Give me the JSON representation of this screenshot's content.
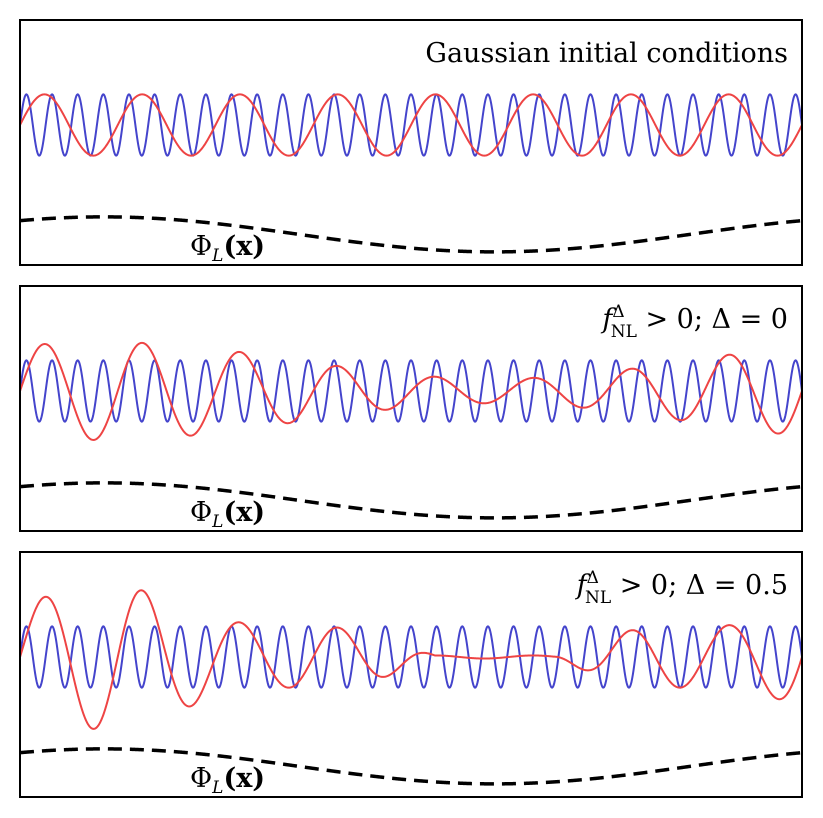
{
  "chart_data": [
    {
      "type": "line",
      "title": "Gaussian initial conditions",
      "title_parts": {
        "base": "Gaussian initial conditions",
        "sup": "",
        "sub": "",
        "rest": ""
      },
      "xlim": [
        0,
        1
      ],
      "ylim": [
        -1.6,
        1.2
      ],
      "grid": false,
      "long_mode_label": "Φ",
      "long_mode_label_sub": "L",
      "long_mode_label_arg": "(x)",
      "long_mode": {
        "name": "",
        "color": "#000000",
        "style": "dashed",
        "amplitude": 0.2,
        "cycles": 1.0,
        "phase": 0.9,
        "offset": -1.25
      },
      "series": [
        {
          "name": "",
          "color": "#4444cc",
          "cycles": 30.5,
          "amplitude": 0.35,
          "phase": 0.0,
          "modulation": 0.0,
          "modulation_power": 0
        },
        {
          "name": "",
          "color": "#ee4444",
          "cycles": 8.0,
          "amplitude": 0.35,
          "phase": 0.0,
          "modulation": 0.0,
          "modulation_power": 0
        }
      ]
    },
    {
      "type": "line",
      "title": "f > 0;  Δ = 0",
      "title_parts": {
        "base": "f",
        "sup": "Δ",
        "sub": "NL",
        "rest": " > 0;  Δ = 0"
      },
      "xlim": [
        0,
        1
      ],
      "ylim": [
        -1.6,
        1.2
      ],
      "grid": false,
      "long_mode_label": "Φ",
      "long_mode_label_sub": "L",
      "long_mode_label_arg": "(x)",
      "long_mode": {
        "name": "",
        "color": "#000000",
        "style": "dashed",
        "amplitude": 0.2,
        "cycles": 1.0,
        "phase": 0.9,
        "offset": -1.25
      },
      "series": [
        {
          "name": "",
          "color": "#4444cc",
          "cycles": 30.5,
          "amplitude": 0.35,
          "phase": 0.0,
          "modulation": 0.0,
          "modulation_power": 0
        },
        {
          "name": "",
          "color": "#ee4444",
          "cycles": 8.0,
          "amplitude": 0.35,
          "phase": 0.0,
          "modulation": 0.6,
          "modulation_power": 1
        }
      ]
    },
    {
      "type": "line",
      "title": "f > 0;  Δ = 0.5",
      "title_parts": {
        "base": "f",
        "sup": "Δ",
        "sub": "NL",
        "rest": " > 0;  Δ = 0.5"
      },
      "xlim": [
        0,
        1
      ],
      "ylim": [
        -1.6,
        1.2
      ],
      "grid": false,
      "long_mode_label": "Φ",
      "long_mode_label_sub": "L",
      "long_mode_label_arg": "(x)",
      "long_mode": {
        "name": "",
        "color": "#000000",
        "style": "dashed",
        "amplitude": 0.2,
        "cycles": 1.0,
        "phase": 0.9,
        "offset": -1.25
      },
      "series": [
        {
          "name": "",
          "color": "#4444cc",
          "cycles": 30.5,
          "amplitude": 0.35,
          "phase": 0.0,
          "modulation": 0.0,
          "modulation_power": 0
        },
        {
          "name": "",
          "color": "#ee4444",
          "cycles": 8.0,
          "amplitude": 0.35,
          "phase": 0.0,
          "modulation": 0.85,
          "modulation_power": 3
        }
      ]
    }
  ]
}
